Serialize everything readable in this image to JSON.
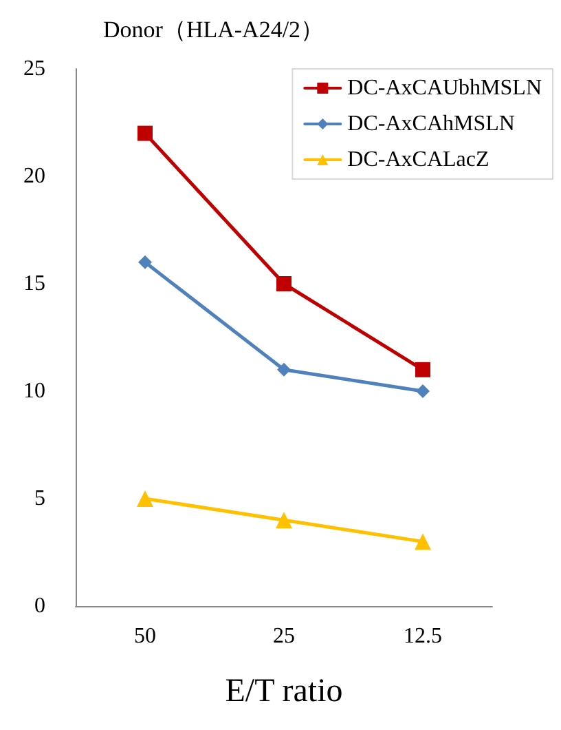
{
  "chart_data": {
    "type": "line",
    "title": "Donor（HLA-A24/2）",
    "xlabel": "E/T ratio",
    "categories": [
      "50",
      "25",
      "12.5"
    ],
    "series": [
      {
        "name": "DC-AxCAUbhMSLN",
        "color": "#c00000",
        "marker": "square",
        "values": [
          22,
          15,
          11
        ]
      },
      {
        "name": "DC-AxCAhMSLN",
        "color": "#4f81bd",
        "marker": "diamond",
        "values": [
          16,
          11,
          10
        ]
      },
      {
        "name": "DC-AxCALacZ",
        "color": "#ffc000",
        "marker": "triangle",
        "values": [
          5,
          4,
          3
        ]
      }
    ],
    "ylim": [
      0,
      25
    ],
    "yticks": [
      0,
      5,
      10,
      15,
      20,
      25
    ],
    "grid": false,
    "legend": "top right",
    "line_style": "solid"
  }
}
